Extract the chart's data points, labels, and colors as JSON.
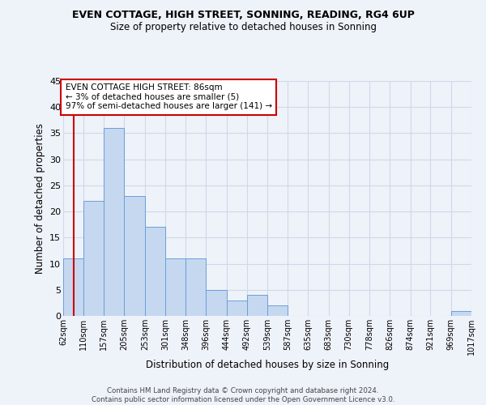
{
  "title": "EVEN COTTAGE, HIGH STREET, SONNING, READING, RG4 6UP",
  "subtitle": "Size of property relative to detached houses in Sonning",
  "xlabel": "Distribution of detached houses by size in Sonning",
  "ylabel": "Number of detached properties",
  "bin_edges": [
    62,
    110,
    157,
    205,
    253,
    301,
    348,
    396,
    444,
    492,
    539,
    587,
    635,
    683,
    730,
    778,
    826,
    874,
    921,
    969,
    1017
  ],
  "bar_heights": [
    11,
    22,
    36,
    23,
    17,
    11,
    11,
    5,
    3,
    4,
    2,
    0,
    0,
    0,
    0,
    0,
    0,
    0,
    0,
    1
  ],
  "bar_facecolor": "#c5d8f0",
  "bar_edgecolor": "#6a9fd8",
  "ylim": [
    0,
    45
  ],
  "yticks": [
    0,
    5,
    10,
    15,
    20,
    25,
    30,
    35,
    40,
    45
  ],
  "grid_color": "#d0d8e8",
  "property_size": 86,
  "vline_color": "#cc0000",
  "annotation_text": "EVEN COTTAGE HIGH STREET: 86sqm\n← 3% of detached houses are smaller (5)\n97% of semi-detached houses are larger (141) →",
  "annotation_box_color": "#cc0000",
  "annotation_facecolor": "white",
  "footer_line1": "Contains HM Land Registry data © Crown copyright and database right 2024.",
  "footer_line2": "Contains public sector information licensed under the Open Government Licence v3.0.",
  "tick_label_suffix": "sqm",
  "background_color": "#eef2f9"
}
